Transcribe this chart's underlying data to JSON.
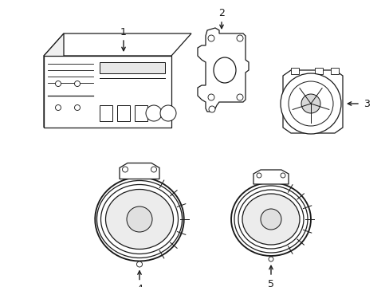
{
  "bg_color": "#ffffff",
  "line_color": "#1a1a1a",
  "lw": 0.9,
  "fig_width": 4.89,
  "fig_height": 3.6
}
